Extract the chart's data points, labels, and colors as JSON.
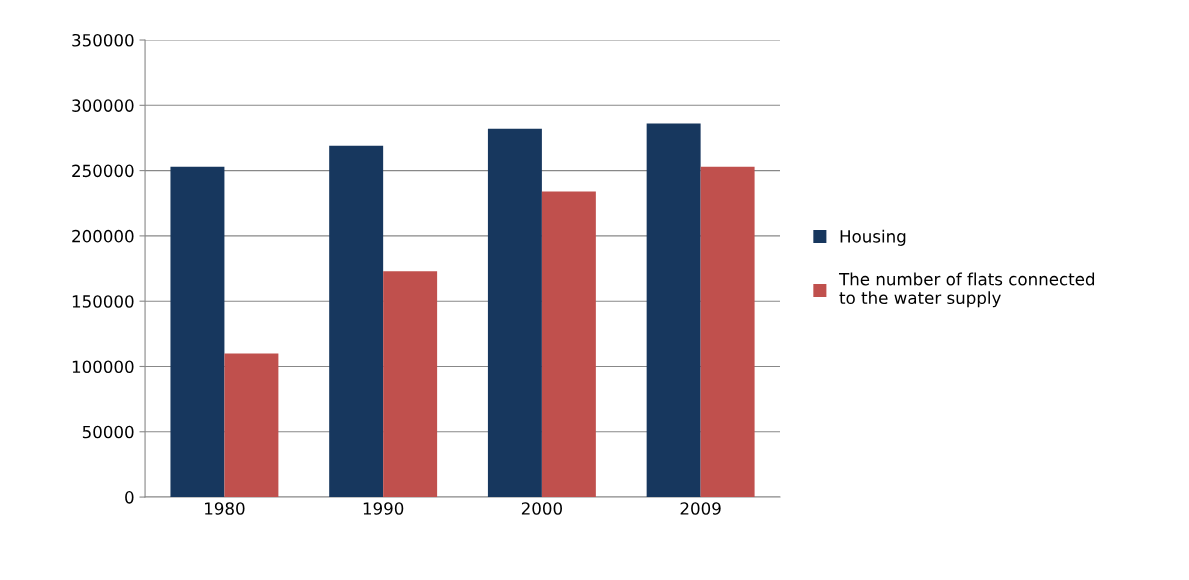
{
  "chart_data": {
    "type": "bar",
    "categories": [
      "1980",
      "1990",
      "2000",
      "2009"
    ],
    "series": [
      {
        "name": "Housing",
        "color": "#17375e",
        "values": [
          253000,
          269000,
          282000,
          286000
        ]
      },
      {
        "name": "The number of flats connected\nto the water supply",
        "color": "#c0504d",
        "values": [
          110000,
          173000,
          234000,
          253000
        ]
      }
    ],
    "ylim": [
      0,
      350000
    ],
    "yticks": [
      0,
      50000,
      100000,
      150000,
      200000,
      250000,
      300000,
      350000
    ],
    "grid": "y",
    "legend": "right"
  }
}
